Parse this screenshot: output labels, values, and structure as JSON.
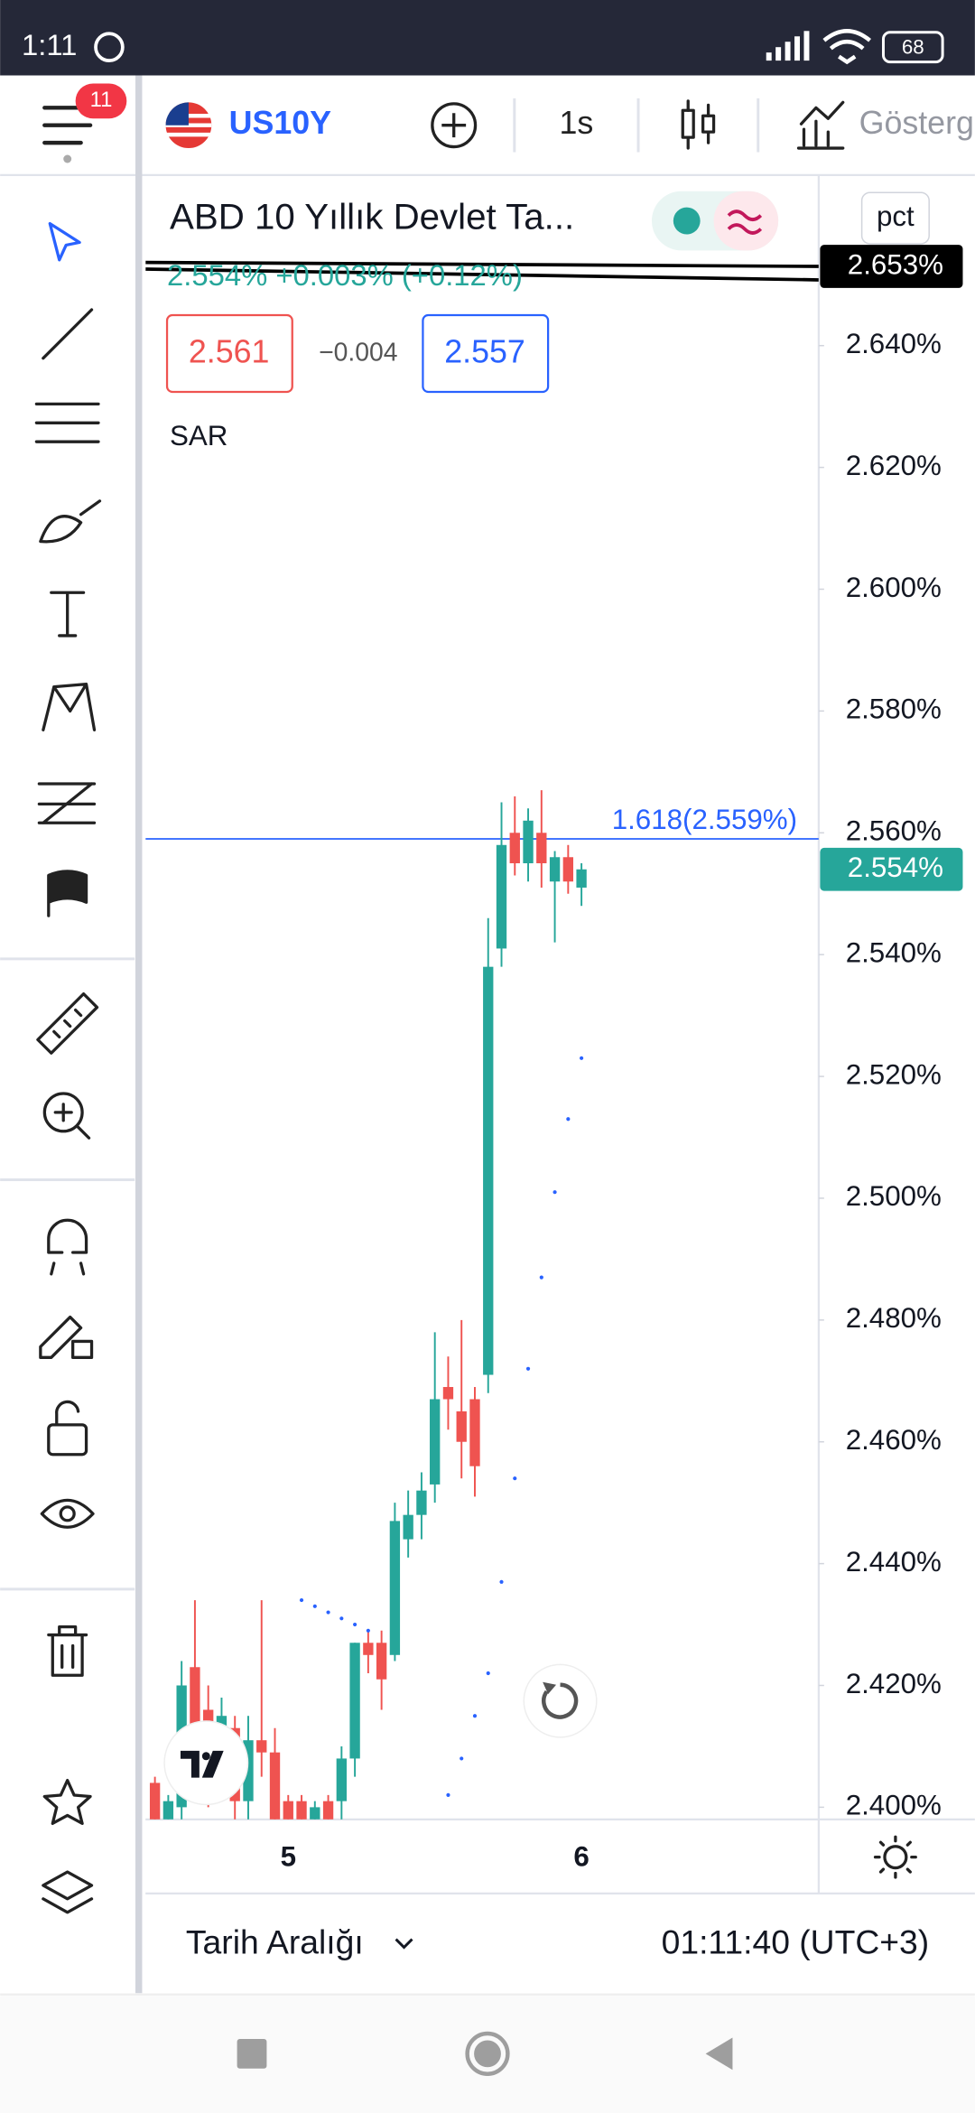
{
  "status_bar": {
    "time": "1:11",
    "battery": "68"
  },
  "toolbar": {
    "badge": "11",
    "symbol": "US10Y",
    "interval": "1s",
    "indicators": "Gösterg"
  },
  "legend": {
    "title": "ABD 10 Yıllık Devlet Ta...",
    "quote": "2.554% +0.003% (+0.12%)",
    "bid": "2.561",
    "spread": "−0.004",
    "ask": "2.557",
    "indicator": "SAR"
  },
  "chart": {
    "type": "candlestick",
    "scale_mode": "pct",
    "ylim": [
      2.398,
      2.668
    ],
    "yticks": [
      {
        "value": 2.4,
        "label": "2.400%"
      },
      {
        "value": 2.42,
        "label": "2.420%"
      },
      {
        "value": 2.44,
        "label": "2.440%"
      },
      {
        "value": 2.46,
        "label": "2.460%"
      },
      {
        "value": 2.48,
        "label": "2.480%"
      },
      {
        "value": 2.5,
        "label": "2.500%"
      },
      {
        "value": 2.52,
        "label": "2.520%"
      },
      {
        "value": 2.54,
        "label": "2.540%"
      },
      {
        "value": 2.56,
        "label": "2.560%"
      },
      {
        "value": 2.58,
        "label": "2.580%"
      },
      {
        "value": 2.6,
        "label": "2.600%"
      },
      {
        "value": 2.62,
        "label": "2.620%"
      },
      {
        "value": 2.64,
        "label": "2.640%"
      }
    ],
    "xticks": [
      {
        "value": 10,
        "label": "5"
      },
      {
        "value": 32,
        "label": "6"
      }
    ],
    "open": [
      2.404,
      2.398,
      2.4,
      2.423,
      2.416,
      2.413,
      2.413,
      2.401,
      2.411,
      2.409,
      2.401,
      2.401,
      2.398,
      2.401,
      2.401,
      2.408,
      2.427,
      2.427,
      2.425,
      2.444,
      2.448,
      2.453,
      2.469,
      2.465,
      2.467,
      2.471,
      2.541,
      2.56,
      2.555,
      2.56,
      2.552,
      2.556,
      2.551
    ],
    "high": [
      2.405,
      2.402,
      2.424,
      2.434,
      2.42,
      2.418,
      2.415,
      2.415,
      2.434,
      2.413,
      2.402,
      2.402,
      2.401,
      2.402,
      2.41,
      2.427,
      2.429,
      2.429,
      2.45,
      2.452,
      2.455,
      2.478,
      2.474,
      2.48,
      2.469,
      2.546,
      2.565,
      2.566,
      2.564,
      2.567,
      2.557,
      2.558,
      2.555
    ],
    "low": [
      2.398,
      2.398,
      2.398,
      2.41,
      2.4,
      2.41,
      2.398,
      2.398,
      2.405,
      2.398,
      2.398,
      2.398,
      2.398,
      2.398,
      2.398,
      2.405,
      2.422,
      2.416,
      2.424,
      2.441,
      2.444,
      2.45,
      2.462,
      2.454,
      2.451,
      2.468,
      2.538,
      2.553,
      2.552,
      2.551,
      2.542,
      2.55,
      2.548
    ],
    "close": [
      2.398,
      2.401,
      2.42,
      2.413,
      2.402,
      2.415,
      2.401,
      2.411,
      2.409,
      2.398,
      2.398,
      2.398,
      2.4,
      2.398,
      2.408,
      2.427,
      2.425,
      2.421,
      2.447,
      2.448,
      2.452,
      2.467,
      2.467,
      2.46,
      2.456,
      2.538,
      2.558,
      2.555,
      2.562,
      2.555,
      2.556,
      2.552,
      2.554
    ],
    "sar": [
      null,
      null,
      null,
      null,
      null,
      null,
      null,
      null,
      null,
      null,
      null,
      2.434,
      2.433,
      2.432,
      2.431,
      2.43,
      2.429,
      null,
      null,
      null,
      null,
      null,
      2.402,
      2.408,
      2.415,
      2.422,
      2.437,
      2.454,
      2.472,
      2.487,
      2.501,
      2.513,
      2.523
    ],
    "up_color": "#26a69a",
    "down_color": "#ef5350",
    "sar_color": "#2962ff",
    "fib": {
      "value": 2.559,
      "label": "1.618(2.559%)"
    },
    "last": {
      "value": 2.554,
      "label": "2.554%"
    },
    "level": {
      "value": 2.653,
      "label": "2.653%"
    }
  },
  "bottom_bar": {
    "range": "Tarih Aralığı",
    "clock": "01:11:40 (UTC+3)"
  }
}
